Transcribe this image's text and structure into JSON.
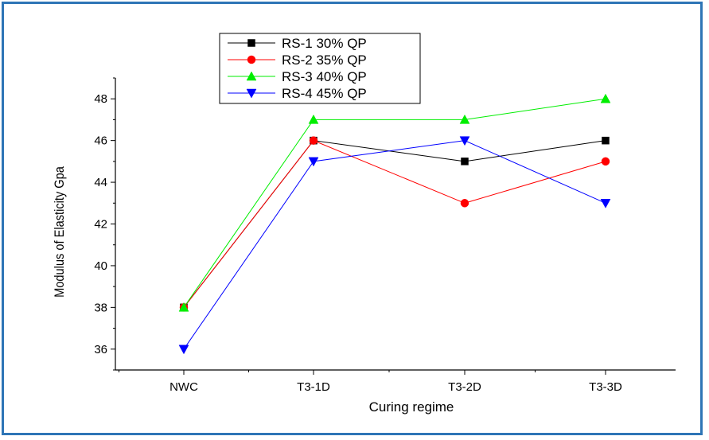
{
  "chart_data": {
    "type": "line",
    "categories": [
      "NWC",
      "T3-1D",
      "T3-2D",
      "T3-3D"
    ],
    "xlabel": "Curing regime",
    "ylabel": "Modulus of Elasticity Gpa",
    "ylim": [
      35,
      49
    ],
    "yticks": [
      36,
      38,
      40,
      42,
      44,
      46,
      48
    ],
    "grid": false,
    "legend_position": "top-left",
    "series": [
      {
        "name": "RS-1 30% QP",
        "color": "#000000",
        "marker": "square",
        "values": [
          38,
          46,
          45,
          46
        ]
      },
      {
        "name": "RS-2 35% QP",
        "color": "#ff0000",
        "marker": "circle",
        "values": [
          38,
          46,
          43,
          45
        ]
      },
      {
        "name": "RS-3 40% QP",
        "color": "#00ee00",
        "marker": "triangle-up",
        "values": [
          38,
          47,
          47,
          48
        ]
      },
      {
        "name": "RS-4 45% QP",
        "color": "#0000ff",
        "marker": "triangle-down",
        "values": [
          36,
          45,
          46,
          43
        ]
      }
    ]
  }
}
